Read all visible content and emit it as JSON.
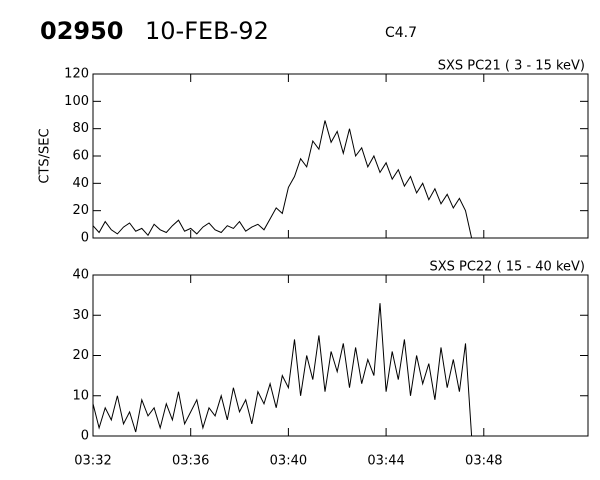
{
  "header": {
    "id": "02950",
    "date": "10-FEB-92",
    "class": "C4.7"
  },
  "chart_data": [
    {
      "type": "line",
      "title": "SXS PC21  (  3 - 15 keV)",
      "ylabel": "CTS/SEC",
      "color": "#000000",
      "grid": false,
      "xlim": [
        "03:32:00",
        "03:52:16"
      ],
      "xticks": [
        "03:32",
        "03:36",
        "03:40",
        "03:44",
        "03:48"
      ],
      "ylim": [
        0,
        120
      ],
      "yticks": [
        0,
        20,
        40,
        60,
        80,
        100,
        120
      ],
      "x": [
        "03:32:00",
        "03:32:15",
        "03:32:30",
        "03:32:45",
        "03:33:00",
        "03:33:15",
        "03:33:30",
        "03:33:45",
        "03:34:00",
        "03:34:15",
        "03:34:30",
        "03:34:45",
        "03:35:00",
        "03:35:15",
        "03:35:30",
        "03:35:45",
        "03:36:00",
        "03:36:15",
        "03:36:30",
        "03:36:45",
        "03:37:00",
        "03:37:15",
        "03:37:30",
        "03:37:45",
        "03:38:00",
        "03:38:15",
        "03:38:30",
        "03:38:45",
        "03:39:00",
        "03:39:15",
        "03:39:30",
        "03:39:45",
        "03:40:00",
        "03:40:15",
        "03:40:30",
        "03:40:45",
        "03:41:00",
        "03:41:15",
        "03:41:30",
        "03:41:45",
        "03:42:00",
        "03:42:15",
        "03:42:30",
        "03:42:45",
        "03:43:00",
        "03:43:15",
        "03:43:30",
        "03:43:45",
        "03:44:00",
        "03:44:15",
        "03:44:30",
        "03:44:45",
        "03:45:00",
        "03:45:15",
        "03:45:30",
        "03:45:45",
        "03:46:00",
        "03:46:15",
        "03:46:30",
        "03:46:45",
        "03:47:00",
        "03:47:15",
        "03:47:30"
      ],
      "values": [
        9,
        4,
        12,
        6,
        3,
        8,
        11,
        5,
        7,
        2,
        10,
        6,
        4,
        9,
        13,
        5,
        7,
        3,
        8,
        11,
        6,
        4,
        9,
        7,
        12,
        5,
        8,
        10,
        6,
        14,
        22,
        18,
        37,
        45,
        58,
        52,
        71,
        65,
        86,
        70,
        78,
        62,
        80,
        60,
        66,
        52,
        60,
        48,
        55,
        43,
        50,
        38,
        45,
        33,
        40,
        28,
        36,
        25,
        32,
        22,
        29,
        20,
        0
      ]
    },
    {
      "type": "line",
      "title": "SXS PC22  ( 15 - 40 keV)",
      "color": "#000000",
      "grid": false,
      "xlim": [
        "03:32:00",
        "03:52:16"
      ],
      "xticks": [
        "03:32",
        "03:36",
        "03:40",
        "03:44",
        "03:48"
      ],
      "ylim": [
        0,
        40
      ],
      "yticks": [
        0,
        10,
        20,
        30,
        40
      ],
      "x": [
        "03:32:00",
        "03:32:15",
        "03:32:30",
        "03:32:45",
        "03:33:00",
        "03:33:15",
        "03:33:30",
        "03:33:45",
        "03:34:00",
        "03:34:15",
        "03:34:30",
        "03:34:45",
        "03:35:00",
        "03:35:15",
        "03:35:30",
        "03:35:45",
        "03:36:00",
        "03:36:15",
        "03:36:30",
        "03:36:45",
        "03:37:00",
        "03:37:15",
        "03:37:30",
        "03:37:45",
        "03:38:00",
        "03:38:15",
        "03:38:30",
        "03:38:45",
        "03:39:00",
        "03:39:15",
        "03:39:30",
        "03:39:45",
        "03:40:00",
        "03:40:15",
        "03:40:30",
        "03:40:45",
        "03:41:00",
        "03:41:15",
        "03:41:30",
        "03:41:45",
        "03:42:00",
        "03:42:15",
        "03:42:30",
        "03:42:45",
        "03:43:00",
        "03:43:15",
        "03:43:30",
        "03:43:45",
        "03:44:00",
        "03:44:15",
        "03:44:30",
        "03:44:45",
        "03:45:00",
        "03:45:15",
        "03:45:30",
        "03:45:45",
        "03:46:00",
        "03:46:15",
        "03:46:30",
        "03:46:45",
        "03:47:00",
        "03:47:15",
        "03:47:30"
      ],
      "values": [
        8,
        2,
        7,
        4,
        10,
        3,
        6,
        1,
        9,
        5,
        7,
        2,
        8,
        4,
        11,
        3,
        6,
        9,
        2,
        7,
        5,
        10,
        4,
        12,
        6,
        9,
        3,
        11,
        8,
        13,
        7,
        15,
        12,
        24,
        10,
        20,
        14,
        25,
        11,
        21,
        16,
        23,
        12,
        22,
        13,
        19,
        15,
        33,
        11,
        21,
        14,
        24,
        10,
        20,
        13,
        18,
        9,
        22,
        12,
        19,
        11,
        23,
        0
      ]
    }
  ]
}
